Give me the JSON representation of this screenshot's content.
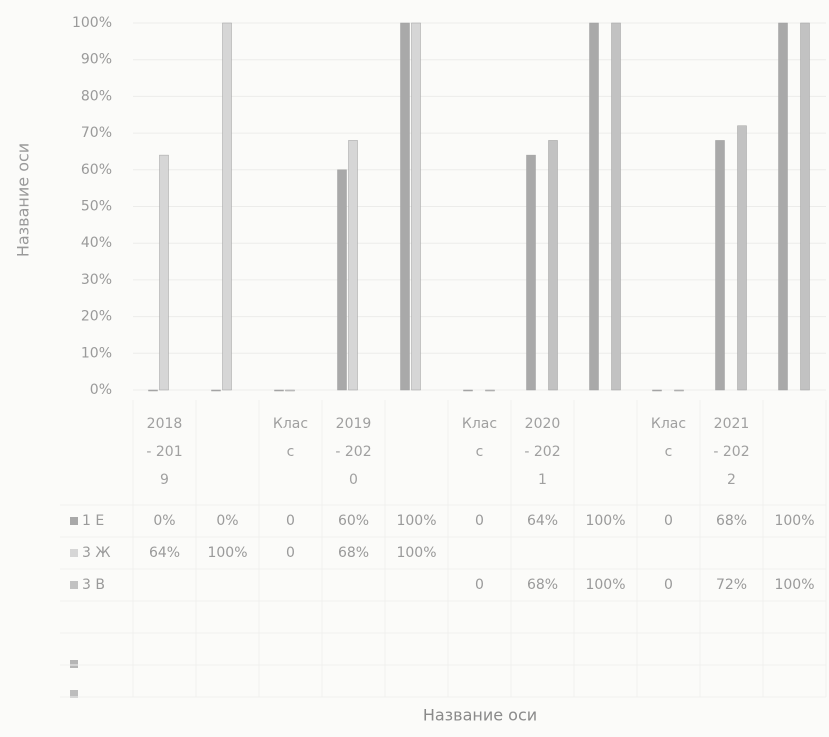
{
  "chart_data": {
    "type": "bar",
    "y_axis_title": "Название оси",
    "x_axis_title": "Название оси",
    "categories": [
      "2018 - 2019",
      null,
      "Класс",
      "2019 - 2020",
      null,
      "Класс",
      "2020 - 2021",
      null,
      "Класс",
      "2021 - 2022",
      null
    ],
    "series": [
      {
        "name": "1 Е",
        "color": "#a9a9a9",
        "values": [
          0,
          0,
          0,
          60,
          100,
          0,
          64,
          100,
          0,
          68,
          100
        ],
        "value_labels": [
          "0%",
          "0%",
          "0",
          "60%",
          "100%",
          "0",
          "64%",
          "100%",
          "0",
          "68%",
          "100%"
        ]
      },
      {
        "name": "3 Ж",
        "color": "#d6d6d6",
        "values": [
          64,
          100,
          0,
          68,
          100,
          null,
          null,
          null,
          null,
          null,
          null
        ],
        "value_labels": [
          "64%",
          "100%",
          "0",
          "68%",
          "100%",
          null,
          null,
          null,
          null,
          null,
          null
        ]
      },
      {
        "name": "3 В",
        "color": "#c2c2c2",
        "values": [
          null,
          null,
          null,
          null,
          null,
          0,
          68,
          100,
          0,
          72,
          100
        ],
        "value_labels": [
          null,
          null,
          null,
          null,
          null,
          "0",
          "68%",
          "100%",
          "0",
          "72%",
          "100%"
        ]
      }
    ],
    "ylim": [
      0,
      100
    ],
    "yticks": [
      {
        "value": 0,
        "label": "0%"
      },
      {
        "value": 10,
        "label": "10%"
      },
      {
        "value": 20,
        "label": "20%"
      },
      {
        "value": 30,
        "label": "30%"
      },
      {
        "value": 40,
        "label": "40%"
      },
      {
        "value": 50,
        "label": "50%"
      },
      {
        "value": 60,
        "label": "60%"
      },
      {
        "value": 70,
        "label": "70%"
      },
      {
        "value": 80,
        "label": "80%"
      },
      {
        "value": 90,
        "label": "90%"
      },
      {
        "value": 100,
        "label": "100%"
      }
    ],
    "grid": true
  }
}
